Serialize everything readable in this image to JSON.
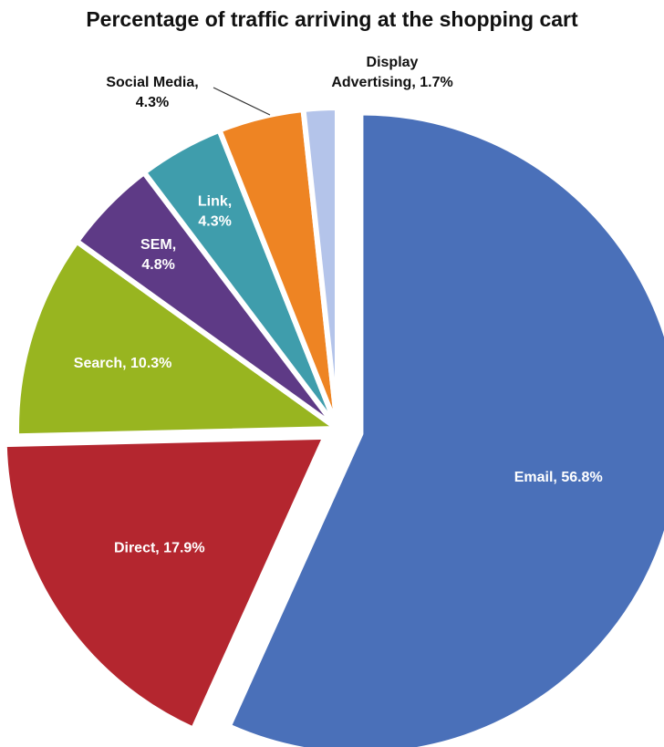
{
  "chart_data": {
    "type": "pie",
    "title": "Percentage of traffic arriving at the shopping cart",
    "slices": [
      {
        "name": "Email",
        "value": 56.8,
        "label_lines": [
          "Email, 56.8%"
        ],
        "color": "#4a70b9"
      },
      {
        "name": "Direct",
        "value": 17.9,
        "label_lines": [
          "Direct, 17.9%"
        ],
        "color": "#b4262f"
      },
      {
        "name": "Search",
        "value": 10.3,
        "label_lines": [
          "Search, 10.3%"
        ],
        "color": "#98b520"
      },
      {
        "name": "SEM",
        "value": 4.8,
        "label_lines": [
          "SEM,",
          "4.8%"
        ],
        "color": "#5e3a86"
      },
      {
        "name": "Link",
        "value": 4.3,
        "label_lines": [
          "Link,",
          "4.3%"
        ],
        "color": "#3f9dac"
      },
      {
        "name": "Social Media",
        "value": 4.3,
        "label_lines": [
          "Social Media,",
          "4.3%"
        ],
        "color": "#ee8423"
      },
      {
        "name": "Display Advertising",
        "value": 1.7,
        "label_lines": [
          "Display",
          "Advertising, 1.7%"
        ],
        "color": "#b4c4ea"
      }
    ],
    "start_direction": "12 o'clock",
    "direction": "clockwise",
    "exploded_slices": [
      "Email",
      "Direct"
    ],
    "legend": "none"
  }
}
